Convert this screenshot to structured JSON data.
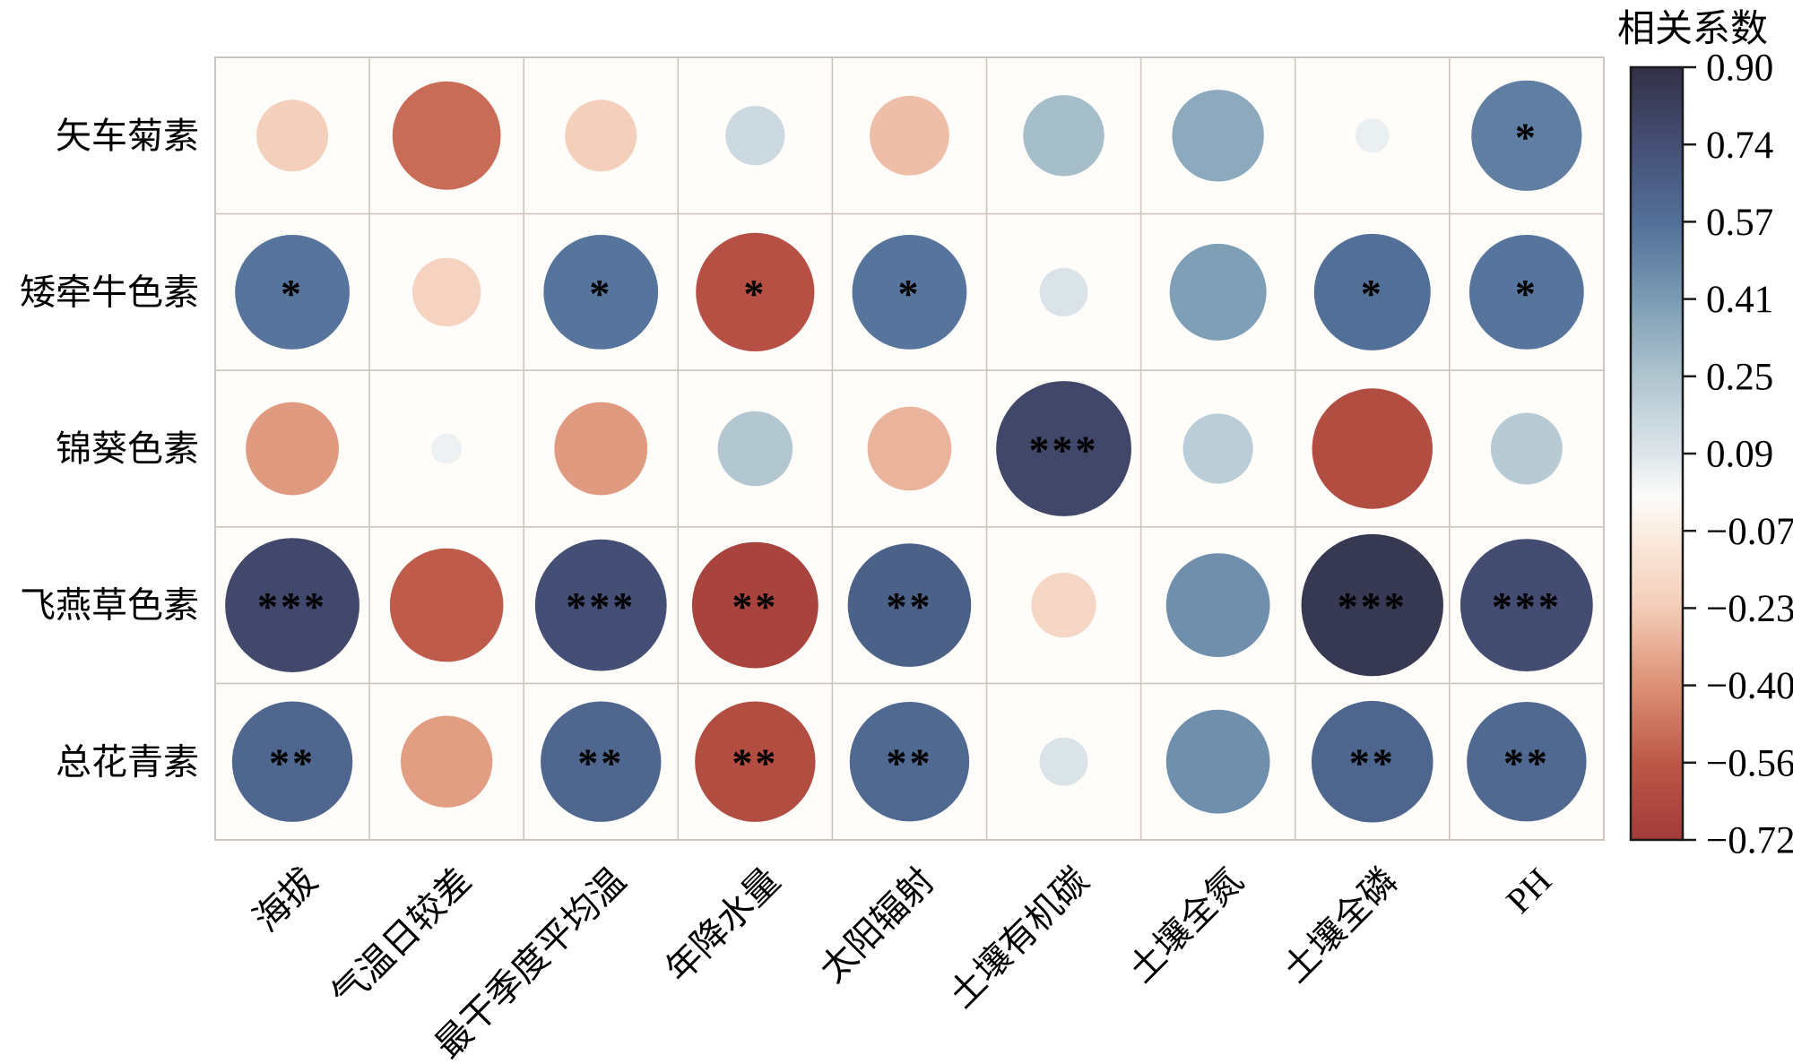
{
  "figure": {
    "kind": "correlation bubble matrix"
  },
  "chart_data": {
    "type": "heatmap",
    "subtype": "correlation-bubble-matrix",
    "rows": [
      "矢车菊素",
      "矮牵牛色素",
      "锦葵色素",
      "飞燕草色素",
      "总花青素"
    ],
    "columns": [
      "海拔",
      "气温日较差",
      "最干季度平均温",
      "年降水量",
      "太阳辐射",
      "土壤有机碳",
      "土壤全氮",
      "土壤全磷",
      "PH"
    ],
    "values": [
      [
        -0.22,
        -0.5,
        -0.22,
        0.15,
        -0.27,
        0.28,
        0.36,
        0.05,
        0.52
      ],
      [
        0.56,
        -0.2,
        0.56,
        -0.6,
        0.56,
        0.1,
        0.4,
        0.58,
        0.56
      ],
      [
        -0.37,
        0.04,
        -0.37,
        0.24,
        -0.3,
        0.78,
        0.21,
        -0.62,
        0.22
      ],
      [
        0.77,
        -0.55,
        0.74,
        -0.68,
        0.65,
        -0.18,
        0.46,
        0.86,
        0.75
      ],
      [
        0.62,
        -0.36,
        0.62,
        -0.62,
        0.61,
        0.1,
        0.46,
        0.63,
        0.61
      ]
    ],
    "significance": [
      [
        "",
        "",
        "",
        "",
        "",
        "",
        "",
        "",
        "*"
      ],
      [
        "*",
        "",
        "*",
        "*",
        "*",
        "",
        "",
        "*",
        "*"
      ],
      [
        "",
        "",
        "",
        "",
        "",
        "***",
        "",
        "",
        ""
      ],
      [
        "***",
        "",
        "***",
        "**",
        "**",
        "",
        "",
        "***",
        "***"
      ],
      [
        "**",
        "",
        "**",
        "**",
        "**",
        "",
        "",
        "**",
        "**"
      ]
    ],
    "size_encoding": "circle diameter proportional to sqrt(|r| / 0.9)",
    "value_domain": [
      -0.72,
      0.9
    ],
    "grid": true,
    "legend_position": "right",
    "colorbar": {
      "title": "相关系数",
      "tick_labels": [
        "0.90",
        "0.74",
        "0.57",
        "0.41",
        "0.25",
        "0.09",
        "−0.07",
        "−0.23",
        "−0.40",
        "−0.56",
        "−0.72"
      ],
      "tick_values": [
        0.9,
        0.74,
        0.57,
        0.41,
        0.25,
        0.09,
        -0.07,
        -0.23,
        -0.4,
        -0.56,
        -0.72
      ],
      "stops": [
        {
          "value": 0.9,
          "color": "#323047"
        },
        {
          "value": 0.74,
          "color": "#454e74"
        },
        {
          "value": 0.57,
          "color": "#53719a"
        },
        {
          "value": 0.41,
          "color": "#7c9cb5"
        },
        {
          "value": 0.25,
          "color": "#b0c5cf"
        },
        {
          "value": 0.09,
          "color": "#dde5ea"
        },
        {
          "value": 0.0,
          "color": "#fbfbf9"
        },
        {
          "value": -0.07,
          "color": "#fbeee3"
        },
        {
          "value": -0.23,
          "color": "#f4cdb8"
        },
        {
          "value": -0.4,
          "color": "#dc8f73"
        },
        {
          "value": -0.56,
          "color": "#bc5747"
        },
        {
          "value": -0.72,
          "color": "#a23c3a"
        }
      ]
    }
  },
  "colors": {
    "gridline": "#cfc4bc",
    "cell_bg": "#fffdfa",
    "axis_text": "#000000",
    "colorbar_frame": "#1a1a1a",
    "star": "#0d0d0d"
  }
}
